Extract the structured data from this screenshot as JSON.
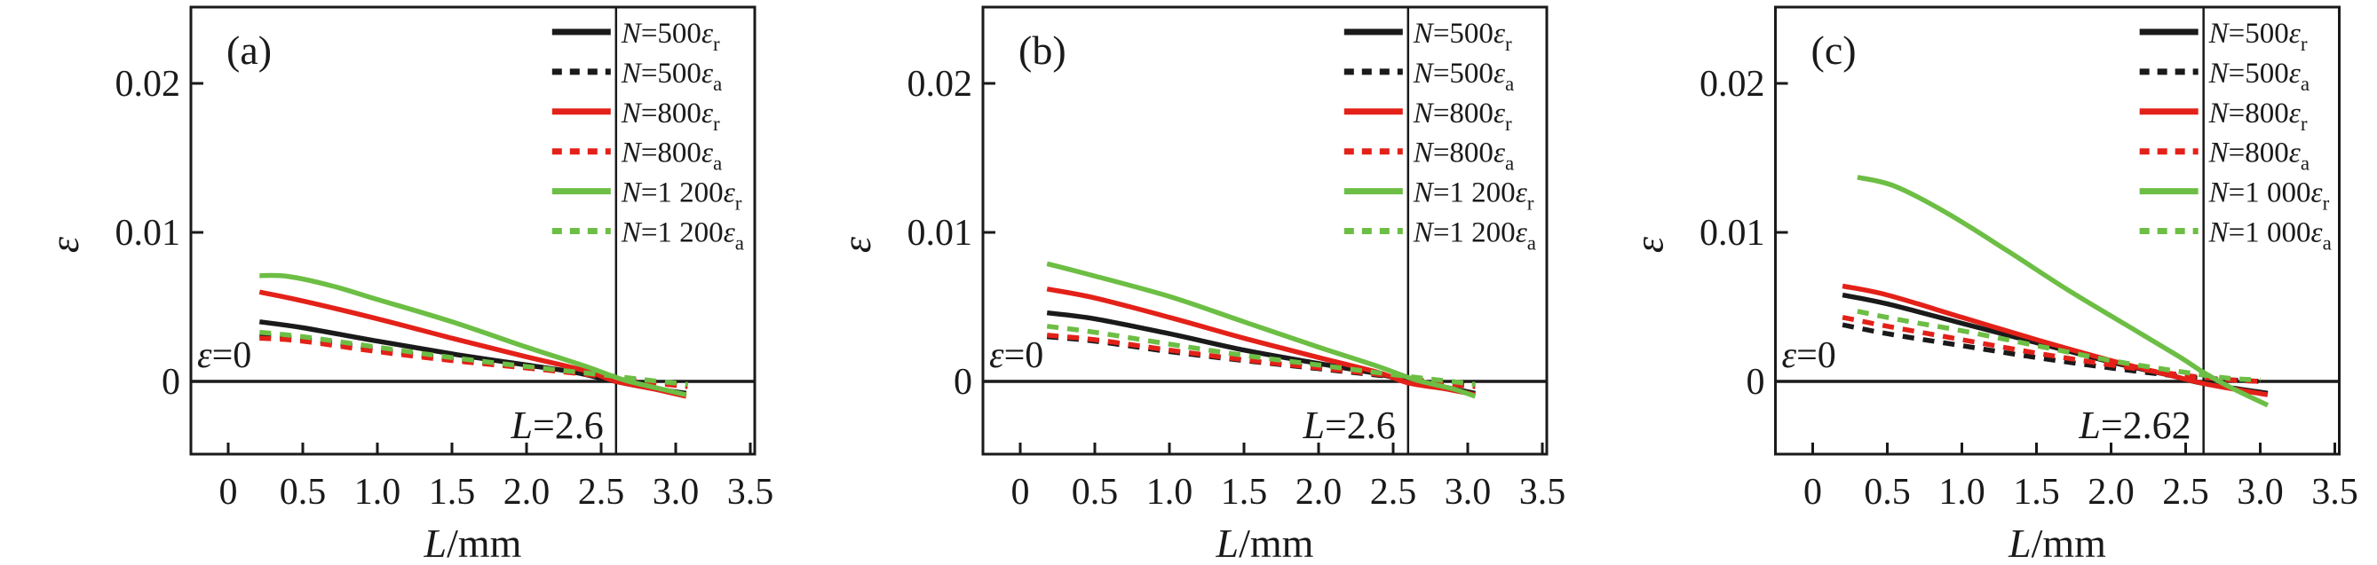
{
  "figure": {
    "background": "#ffffff",
    "colors": {
      "black": "#1a1a1a",
      "red": "#e32119",
      "green": "#6cbe44"
    }
  },
  "chart_data": [
    {
      "type": "line",
      "panel_label": "(a)",
      "xlabel_var": "L",
      "xlabel_rest": "/mm",
      "ylabel": "ε",
      "xlim": [
        -0.25,
        3.53
      ],
      "ylim": [
        -0.0049,
        0.0251
      ],
      "xtick_values": [
        0,
        0.5,
        1.0,
        1.5,
        2.0,
        2.5,
        3.0,
        3.5
      ],
      "xtick_labels": [
        "0",
        "0.5",
        "1.0",
        "1.5",
        "2.0",
        "2.5",
        "3.0",
        "3.5"
      ],
      "ytick_values": [
        0,
        0.01,
        0.02
      ],
      "ytick_labels": [
        "0",
        "0.01",
        "0.02"
      ],
      "grid": false,
      "hline": 0,
      "vline": 2.6,
      "annotation_eps": {
        "var": "ε",
        "rest": "=0"
      },
      "annotation_vline": {
        "var": "L",
        "rest": "=2.6"
      },
      "legend_position": "top-right",
      "legend": [
        {
          "prefix": "N",
          "value": "=500",
          "eps": "ε",
          "sub": "r",
          "color": "#1a1a1a",
          "dashed": false
        },
        {
          "prefix": "N",
          "value": "=500",
          "eps": "ε",
          "sub": "a",
          "color": "#1a1a1a",
          "dashed": true
        },
        {
          "prefix": "N",
          "value": "=800",
          "eps": "ε",
          "sub": "r",
          "color": "#e32119",
          "dashed": false
        },
        {
          "prefix": "N",
          "value": "=800",
          "eps": "ε",
          "sub": "a",
          "color": "#e32119",
          "dashed": true
        },
        {
          "prefix": "N",
          "value": "=1 200",
          "eps": "ε",
          "sub": "r",
          "color": "#6cbe44",
          "dashed": false
        },
        {
          "prefix": "N",
          "value": "=1 200",
          "eps": "ε",
          "sub": "a",
          "color": "#6cbe44",
          "dashed": true
        }
      ],
      "series": [
        {
          "name": "N=500er",
          "color": "#1a1a1a",
          "dashed": false,
          "points": [
            [
              0.21,
              0.004
            ],
            [
              0.5,
              0.0036
            ],
            [
              1.0,
              0.0027
            ],
            [
              1.5,
              0.00185
            ],
            [
              2.0,
              0.0011
            ],
            [
              2.3,
              0.00065
            ],
            [
              2.55,
              0.0001
            ],
            [
              2.8,
              -0.0004
            ],
            [
              3.07,
              -0.0008
            ]
          ]
        },
        {
          "name": "N=500ea",
          "color": "#1a1a1a",
          "dashed": true,
          "points": [
            [
              0.21,
              0.0031
            ],
            [
              0.5,
              0.00285
            ],
            [
              1.0,
              0.00215
            ],
            [
              1.5,
              0.0015
            ],
            [
              2.0,
              0.00095
            ],
            [
              2.5,
              0.0004
            ],
            [
              2.75,
              0.0001
            ],
            [
              3.08,
              -0.0003
            ]
          ]
        },
        {
          "name": "N=800er",
          "color": "#e32119",
          "dashed": false,
          "points": [
            [
              0.21,
              0.006
            ],
            [
              0.5,
              0.0054
            ],
            [
              1.0,
              0.0042
            ],
            [
              1.5,
              0.0029
            ],
            [
              2.0,
              0.00165
            ],
            [
              2.4,
              0.0007
            ],
            [
              2.6,
              0.0
            ],
            [
              2.85,
              -0.0005
            ],
            [
              3.07,
              -0.001
            ]
          ]
        },
        {
          "name": "N=800ea",
          "color": "#e32119",
          "dashed": true,
          "points": [
            [
              0.21,
              0.0029
            ],
            [
              0.5,
              0.0027
            ],
            [
              1.0,
              0.002
            ],
            [
              1.5,
              0.0014
            ],
            [
              2.0,
              0.0009
            ],
            [
              2.5,
              0.00035
            ],
            [
              2.75,
              0.0
            ],
            [
              3.08,
              -0.00035
            ]
          ]
        },
        {
          "name": "N=1200er",
          "color": "#6cbe44",
          "dashed": false,
          "points": [
            [
              0.21,
              0.0071
            ],
            [
              0.4,
              0.00705
            ],
            [
              0.7,
              0.0064
            ],
            [
              1.0,
              0.0055
            ],
            [
              1.5,
              0.004
            ],
            [
              2.0,
              0.0023
            ],
            [
              2.4,
              0.001
            ],
            [
              2.65,
              0.0001
            ],
            [
              2.9,
              -0.0005
            ],
            [
              3.07,
              -0.0009
            ]
          ]
        },
        {
          "name": "N=1200ea",
          "color": "#6cbe44",
          "dashed": true,
          "points": [
            [
              0.21,
              0.0033
            ],
            [
              0.5,
              0.003
            ],
            [
              1.0,
              0.0023
            ],
            [
              1.5,
              0.0016
            ],
            [
              2.0,
              0.001
            ],
            [
              2.5,
              0.00045
            ],
            [
              2.8,
              0.0001
            ],
            [
              3.08,
              -0.0002
            ]
          ]
        }
      ]
    },
    {
      "type": "line",
      "panel_label": "(b)",
      "xlabel_var": "L",
      "xlabel_rest": "/mm",
      "ylabel": "ε",
      "xlim": [
        -0.25,
        3.53
      ],
      "ylim": [
        -0.0049,
        0.0251
      ],
      "xtick_values": [
        0,
        0.5,
        1.0,
        1.5,
        2.0,
        2.5,
        3.0,
        3.5
      ],
      "xtick_labels": [
        "0",
        "0.5",
        "1.0",
        "1.5",
        "2.0",
        "2.5",
        "3.0",
        "3.5"
      ],
      "ytick_values": [
        0,
        0.01,
        0.02
      ],
      "ytick_labels": [
        "0",
        "0.01",
        "0.02"
      ],
      "grid": false,
      "hline": 0,
      "vline": 2.6,
      "annotation_eps": {
        "var": "ε",
        "rest": "=0"
      },
      "annotation_vline": {
        "var": "L",
        "rest": "=2.6"
      },
      "legend_position": "top-right",
      "legend": [
        {
          "prefix": "N",
          "value": "=500",
          "eps": "ε",
          "sub": "r",
          "color": "#1a1a1a",
          "dashed": false
        },
        {
          "prefix": "N",
          "value": "=500",
          "eps": "ε",
          "sub": "a",
          "color": "#1a1a1a",
          "dashed": true
        },
        {
          "prefix": "N",
          "value": "=800",
          "eps": "ε",
          "sub": "r",
          "color": "#e32119",
          "dashed": false
        },
        {
          "prefix": "N",
          "value": "=800",
          "eps": "ε",
          "sub": "a",
          "color": "#e32119",
          "dashed": true
        },
        {
          "prefix": "N",
          "value": "=1 200",
          "eps": "ε",
          "sub": "r",
          "color": "#6cbe44",
          "dashed": false
        },
        {
          "prefix": "N",
          "value": "=1 200",
          "eps": "ε",
          "sub": "a",
          "color": "#6cbe44",
          "dashed": true
        }
      ],
      "series": [
        {
          "name": "N=500er",
          "color": "#1a1a1a",
          "dashed": false,
          "points": [
            [
              0.18,
              0.0046
            ],
            [
              0.5,
              0.0042
            ],
            [
              1.0,
              0.0032
            ],
            [
              1.5,
              0.0021
            ],
            [
              2.0,
              0.0012
            ],
            [
              2.4,
              0.0005
            ],
            [
              2.6,
              0.0
            ],
            [
              2.85,
              -0.0004
            ],
            [
              3.05,
              -0.0008
            ]
          ]
        },
        {
          "name": "N=500ea",
          "color": "#1a1a1a",
          "dashed": true,
          "points": [
            [
              0.18,
              0.003
            ],
            [
              0.5,
              0.0027
            ],
            [
              1.0,
              0.002
            ],
            [
              1.5,
              0.0014
            ],
            [
              2.0,
              0.00085
            ],
            [
              2.5,
              0.0003
            ],
            [
              2.8,
              -0.0001
            ],
            [
              3.05,
              -0.0003
            ]
          ]
        },
        {
          "name": "N=800er",
          "color": "#e32119",
          "dashed": false,
          "points": [
            [
              0.18,
              0.0062
            ],
            [
              0.5,
              0.0056
            ],
            [
              1.0,
              0.0043
            ],
            [
              1.5,
              0.0029
            ],
            [
              2.0,
              0.0016
            ],
            [
              2.4,
              0.0006
            ],
            [
              2.6,
              -0.0001
            ],
            [
              2.85,
              -0.0005
            ],
            [
              3.05,
              -0.0009
            ]
          ]
        },
        {
          "name": "N=800ea",
          "color": "#e32119",
          "dashed": true,
          "points": [
            [
              0.18,
              0.0031
            ],
            [
              0.5,
              0.0028
            ],
            [
              1.0,
              0.0021
            ],
            [
              1.5,
              0.00145
            ],
            [
              2.0,
              0.0009
            ],
            [
              2.5,
              0.00035
            ],
            [
              2.8,
              -0.0001
            ],
            [
              3.05,
              -0.00035
            ]
          ]
        },
        {
          "name": "N=1200er",
          "color": "#6cbe44",
          "dashed": false,
          "points": [
            [
              0.18,
              0.0079
            ],
            [
              0.45,
              0.0072
            ],
            [
              1.0,
              0.0057
            ],
            [
              1.5,
              0.004
            ],
            [
              2.0,
              0.0023
            ],
            [
              2.4,
              0.001
            ],
            [
              2.65,
              0.0001
            ],
            [
              2.9,
              -0.0005
            ],
            [
              3.05,
              -0.001
            ]
          ]
        },
        {
          "name": "N=1200ea",
          "color": "#6cbe44",
          "dashed": true,
          "points": [
            [
              0.18,
              0.0037
            ],
            [
              0.5,
              0.0033
            ],
            [
              1.0,
              0.0025
            ],
            [
              1.5,
              0.00175
            ],
            [
              2.0,
              0.0011
            ],
            [
              2.5,
              0.00045
            ],
            [
              2.8,
              0.0001
            ],
            [
              3.05,
              -0.0002
            ]
          ]
        }
      ]
    },
    {
      "type": "line",
      "panel_label": "(c)",
      "xlabel_var": "L",
      "xlabel_rest": "/mm",
      "ylabel": "ε",
      "xlim": [
        -0.25,
        3.53
      ],
      "ylim": [
        -0.0049,
        0.0251
      ],
      "xtick_values": [
        0,
        0.5,
        1.0,
        1.5,
        2.0,
        2.5,
        3.0,
        3.5
      ],
      "xtick_labels": [
        "0",
        "0.5",
        "1.0",
        "1.5",
        "2.0",
        "2.5",
        "3.0",
        "3.5"
      ],
      "ytick_values": [
        0,
        0.01,
        0.02
      ],
      "ytick_labels": [
        "0",
        "0.01",
        "0.02"
      ],
      "grid": false,
      "hline": 0,
      "vline": 2.62,
      "annotation_eps": {
        "var": "ε",
        "rest": "=0"
      },
      "annotation_vline": {
        "var": "L",
        "rest": "=2.62"
      },
      "legend_position": "top-right",
      "legend": [
        {
          "prefix": "N",
          "value": "=500",
          "eps": "ε",
          "sub": "r",
          "color": "#1a1a1a",
          "dashed": false
        },
        {
          "prefix": "N",
          "value": "=500",
          "eps": "ε",
          "sub": "a",
          "color": "#1a1a1a",
          "dashed": true
        },
        {
          "prefix": "N",
          "value": "=800",
          "eps": "ε",
          "sub": "r",
          "color": "#e32119",
          "dashed": false
        },
        {
          "prefix": "N",
          "value": "=800",
          "eps": "ε",
          "sub": "a",
          "color": "#e32119",
          "dashed": true
        },
        {
          "prefix": "N",
          "value": "=1 000",
          "eps": "ε",
          "sub": "r",
          "color": "#6cbe44",
          "dashed": false
        },
        {
          "prefix": "N",
          "value": "=1 000",
          "eps": "ε",
          "sub": "a",
          "color": "#6cbe44",
          "dashed": true
        }
      ],
      "series": [
        {
          "name": "N=500er",
          "color": "#1a1a1a",
          "dashed": false,
          "points": [
            [
              0.2,
              0.0058
            ],
            [
              0.5,
              0.0052
            ],
            [
              1.0,
              0.0039
            ],
            [
              1.5,
              0.0026
            ],
            [
              2.0,
              0.0013
            ],
            [
              2.4,
              0.0004
            ],
            [
              2.6,
              -0.0001
            ],
            [
              3.05,
              -0.0008
            ]
          ]
        },
        {
          "name": "N=500ea",
          "color": "#1a1a1a",
          "dashed": true,
          "points": [
            [
              0.2,
              0.0038
            ],
            [
              0.5,
              0.0032
            ],
            [
              1.0,
              0.0024
            ],
            [
              1.5,
              0.0016
            ],
            [
              2.0,
              0.0009
            ],
            [
              2.5,
              0.0003
            ],
            [
              2.8,
              0.0001
            ],
            [
              3.0,
              0.0
            ]
          ]
        },
        {
          "name": "N=800er",
          "color": "#e32119",
          "dashed": false,
          "points": [
            [
              0.2,
              0.0064
            ],
            [
              0.5,
              0.0058
            ],
            [
              1.0,
              0.0043
            ],
            [
              1.5,
              0.0028
            ],
            [
              2.0,
              0.0014
            ],
            [
              2.4,
              0.0004
            ],
            [
              2.65,
              -0.0002
            ],
            [
              3.05,
              -0.0009
            ]
          ]
        },
        {
          "name": "N=800ea",
          "color": "#e32119",
          "dashed": true,
          "points": [
            [
              0.2,
              0.0043
            ],
            [
              0.5,
              0.0037
            ],
            [
              1.0,
              0.0028
            ],
            [
              1.5,
              0.0019
            ],
            [
              2.0,
              0.0011
            ],
            [
              2.5,
              0.0004
            ],
            [
              2.8,
              0.0001
            ],
            [
              3.0,
              0.0
            ]
          ]
        },
        {
          "name": "N=1000er",
          "color": "#6cbe44",
          "dashed": false,
          "points": [
            [
              0.3,
              0.0137
            ],
            [
              0.55,
              0.0131
            ],
            [
              0.9,
              0.0113
            ],
            [
              1.3,
              0.0088
            ],
            [
              1.7,
              0.0062
            ],
            [
              2.1,
              0.0038
            ],
            [
              2.45,
              0.0017
            ],
            [
              2.62,
              0.0006
            ],
            [
              2.8,
              -0.0004
            ],
            [
              3.05,
              -0.0016
            ]
          ]
        },
        {
          "name": "N=1000ea",
          "color": "#6cbe44",
          "dashed": true,
          "points": [
            [
              0.3,
              0.0047
            ],
            [
              0.6,
              0.0041
            ],
            [
              1.0,
              0.0034
            ],
            [
              1.5,
              0.0024
            ],
            [
              2.0,
              0.0014
            ],
            [
              2.5,
              0.0006
            ],
            [
              2.8,
              0.0002
            ],
            [
              3.0,
              0.0001
            ]
          ]
        }
      ]
    }
  ]
}
